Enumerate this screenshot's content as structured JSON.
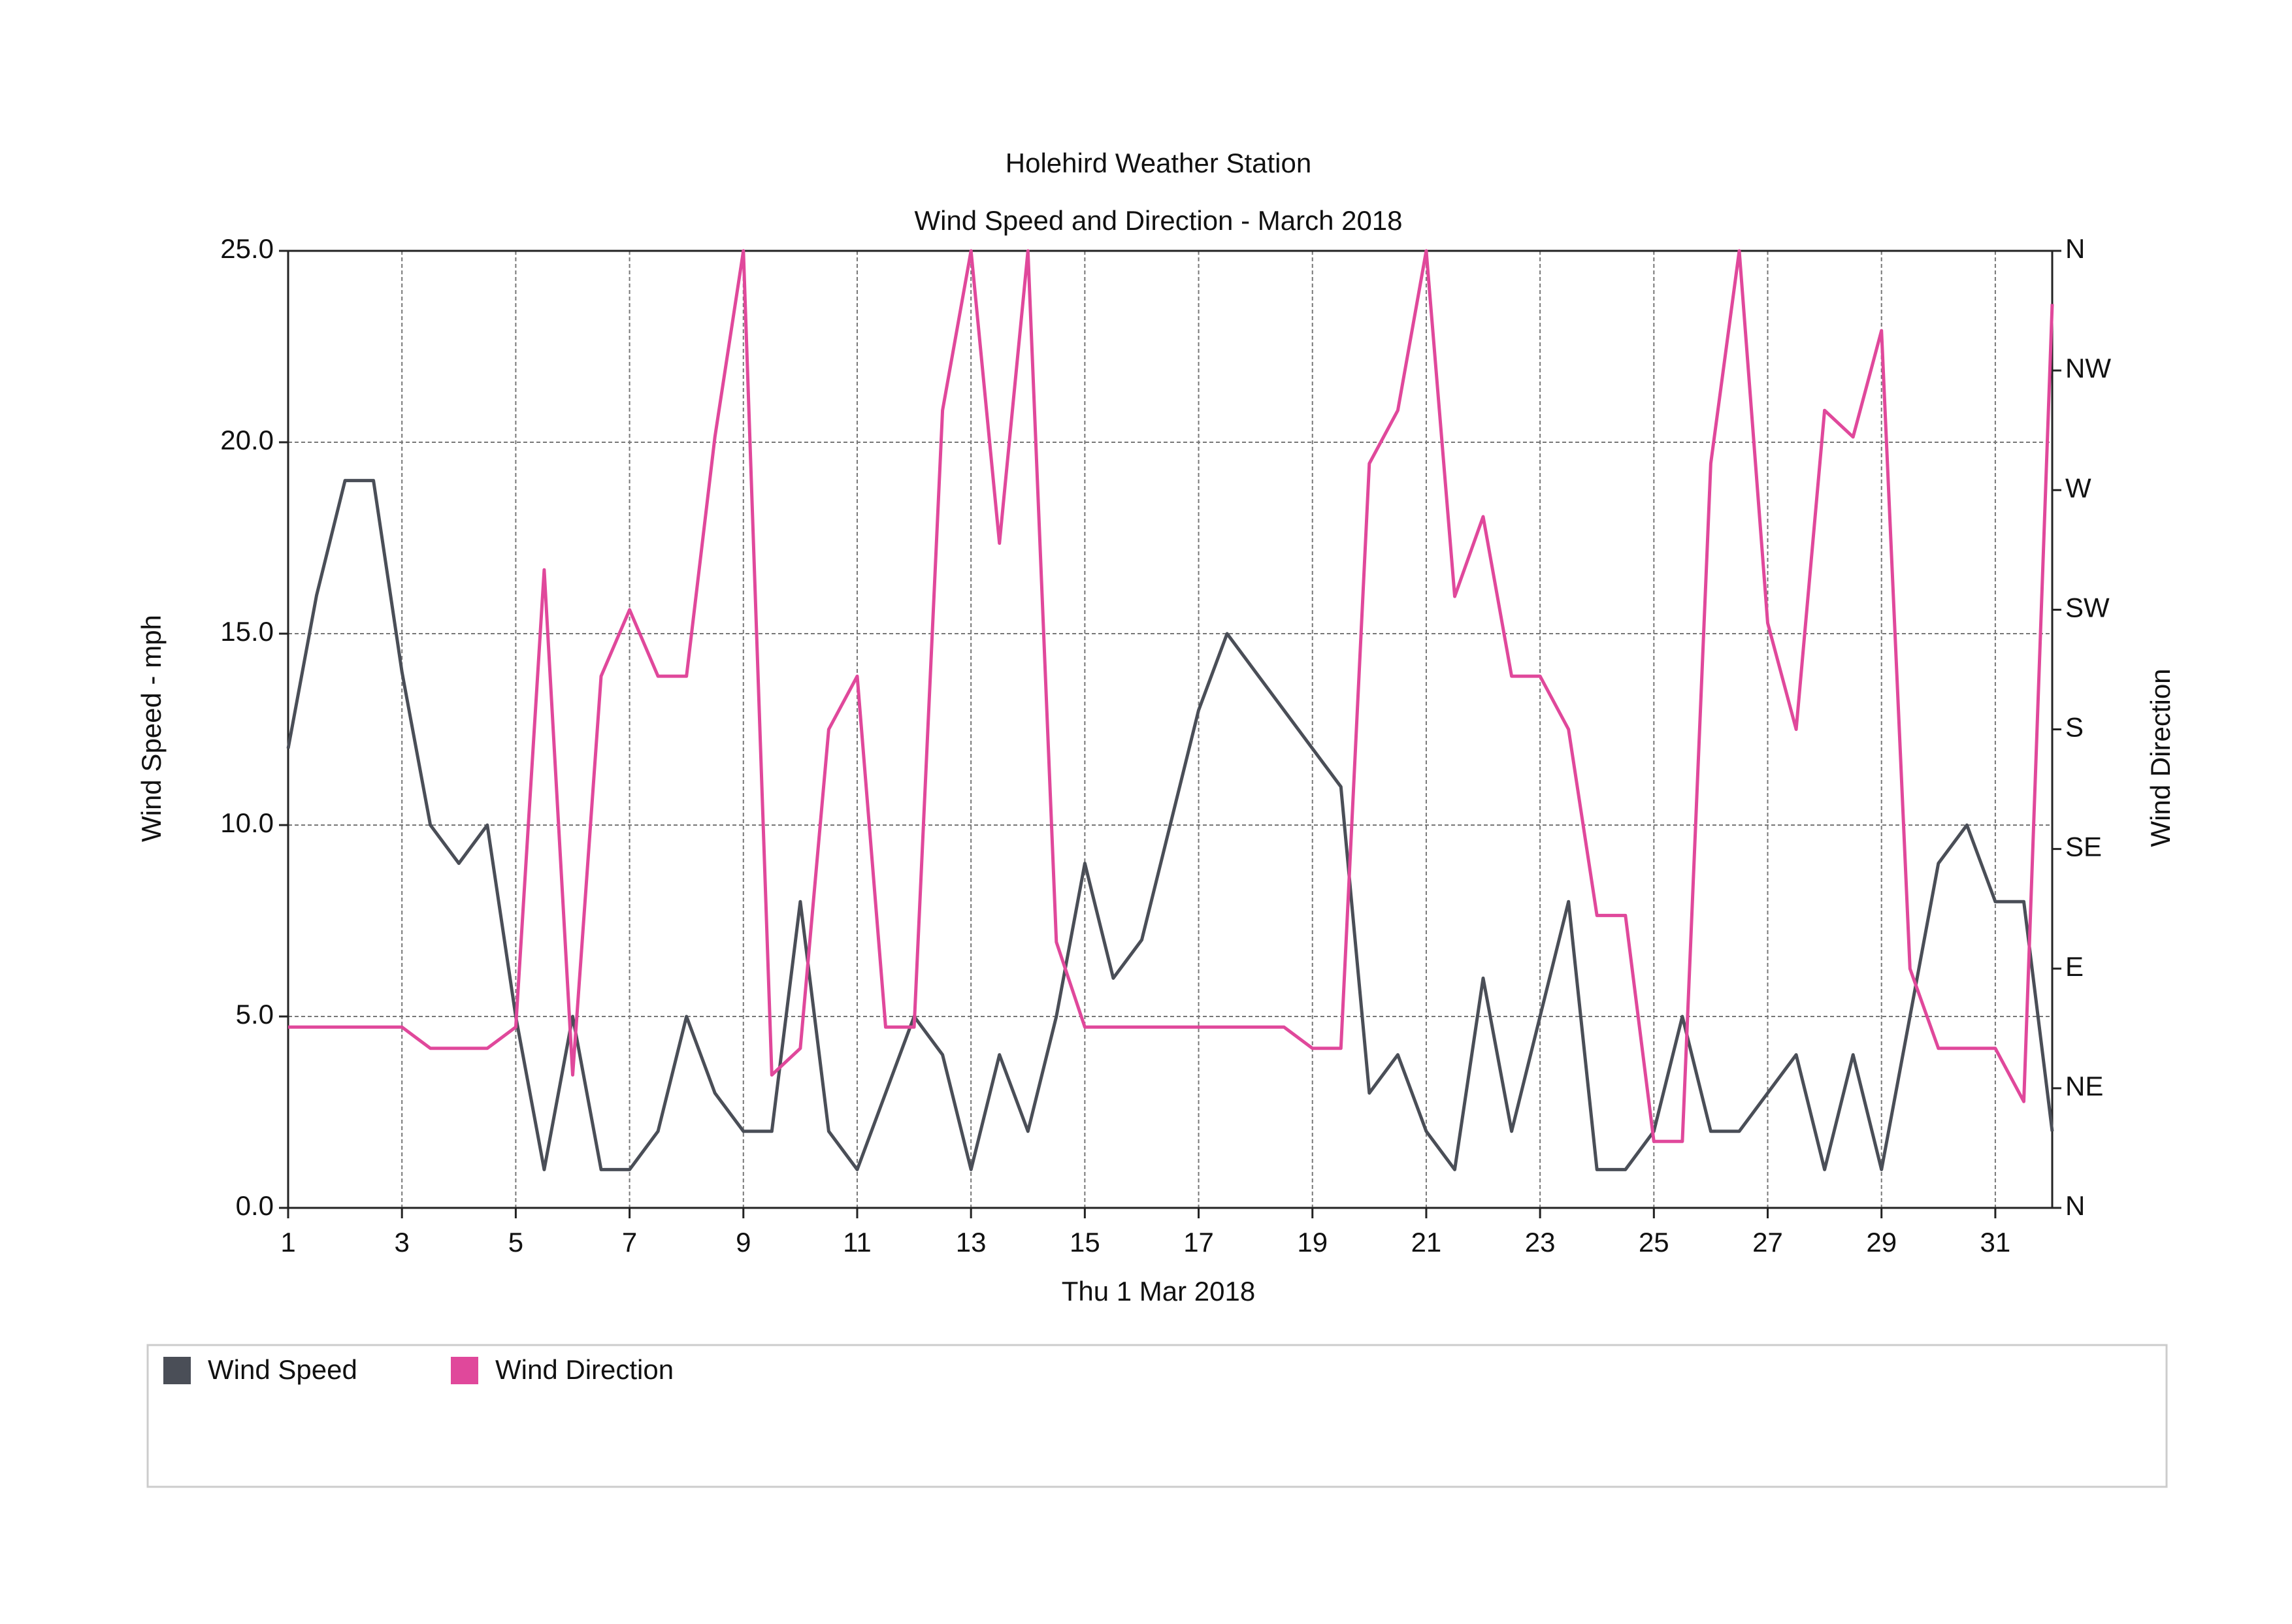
{
  "chart_data": {
    "type": "line",
    "title": "Holehird Weather Station",
    "subtitle": "Wind Speed and Direction - March 2018",
    "x_label": "Thu 1 Mar 2018",
    "y_label": "Wind Speed - mph",
    "y2_label": "Wind Direction",
    "x": [
      1,
      1.5,
      2,
      2.5,
      3,
      3.5,
      4,
      4.5,
      5,
      5.5,
      6,
      6.5,
      7,
      7.5,
      8,
      8.5,
      9,
      9.5,
      10,
      10.5,
      11,
      11.5,
      12,
      12.5,
      13,
      13.5,
      14,
      14.5,
      15,
      15.5,
      16,
      16.5,
      17,
      17.5,
      18,
      18.5,
      19,
      19.5,
      20,
      20.5,
      21,
      21.5,
      22,
      22.5,
      23,
      23.5,
      24,
      24.5,
      25,
      25.5,
      26,
      26.5,
      27,
      27.5,
      28,
      28.5,
      29,
      29.5,
      30,
      30.5,
      31,
      31.5,
      32
    ],
    "xlim": [
      1,
      32
    ],
    "xticks": [
      1,
      3,
      5,
      7,
      9,
      11,
      13,
      15,
      17,
      19,
      21,
      23,
      25,
      27,
      29,
      31
    ],
    "ylim": [
      0,
      25
    ],
    "yticks": [
      {
        "value": 0,
        "label": "0.0"
      },
      {
        "value": 5,
        "label": "5.0"
      },
      {
        "value": 10,
        "label": "10.0"
      },
      {
        "value": 15,
        "label": "15.0"
      },
      {
        "value": 20,
        "label": "20.0"
      },
      {
        "value": 25,
        "label": "25.0"
      }
    ],
    "y2lim": [
      0,
      360
    ],
    "y2ticks": [
      {
        "value": 0,
        "label": "N"
      },
      {
        "value": 45,
        "label": "NE"
      },
      {
        "value": 90,
        "label": "E"
      },
      {
        "value": 135,
        "label": "SE"
      },
      {
        "value": 180,
        "label": "S"
      },
      {
        "value": 225,
        "label": "SW"
      },
      {
        "value": 270,
        "label": "W"
      },
      {
        "value": 315,
        "label": "NW"
      },
      {
        "value": 360,
        "label": "N"
      }
    ],
    "grid": true,
    "legend": "bottom",
    "series": [
      {
        "name": "Wind Speed",
        "color": "#4a4e57",
        "values": [
          12,
          16,
          19,
          19,
          14,
          10,
          9,
          10,
          5,
          1,
          5,
          1,
          1,
          2,
          5,
          3,
          2,
          2,
          8,
          2,
          1,
          3,
          5,
          4,
          1,
          4,
          2,
          5,
          9,
          6,
          7,
          10,
          13,
          15,
          14,
          13,
          12,
          11,
          3,
          4,
          2,
          1,
          6,
          2,
          5,
          8,
          1,
          1,
          2,
          5,
          2,
          2,
          3,
          4,
          1,
          4,
          1,
          5,
          9,
          10,
          8,
          8,
          2
        ]
      },
      {
        "name": "Wind Direction",
        "color": "#e0489b",
        "axis": "y2",
        "values": [
          68,
          68,
          68,
          68,
          68,
          60,
          60,
          60,
          68,
          240,
          50,
          200,
          225,
          200,
          200,
          290,
          360,
          50,
          60,
          180,
          200,
          68,
          68,
          300,
          360,
          250,
          360,
          100,
          68,
          68,
          68,
          68,
          68,
          68,
          68,
          68,
          60,
          60,
          280,
          300,
          360,
          230,
          260,
          200,
          200,
          180,
          110,
          110,
          25,
          25,
          280,
          360,
          220,
          180,
          300,
          290,
          330,
          90,
          60,
          60,
          60,
          40,
          340
        ]
      }
    ]
  }
}
